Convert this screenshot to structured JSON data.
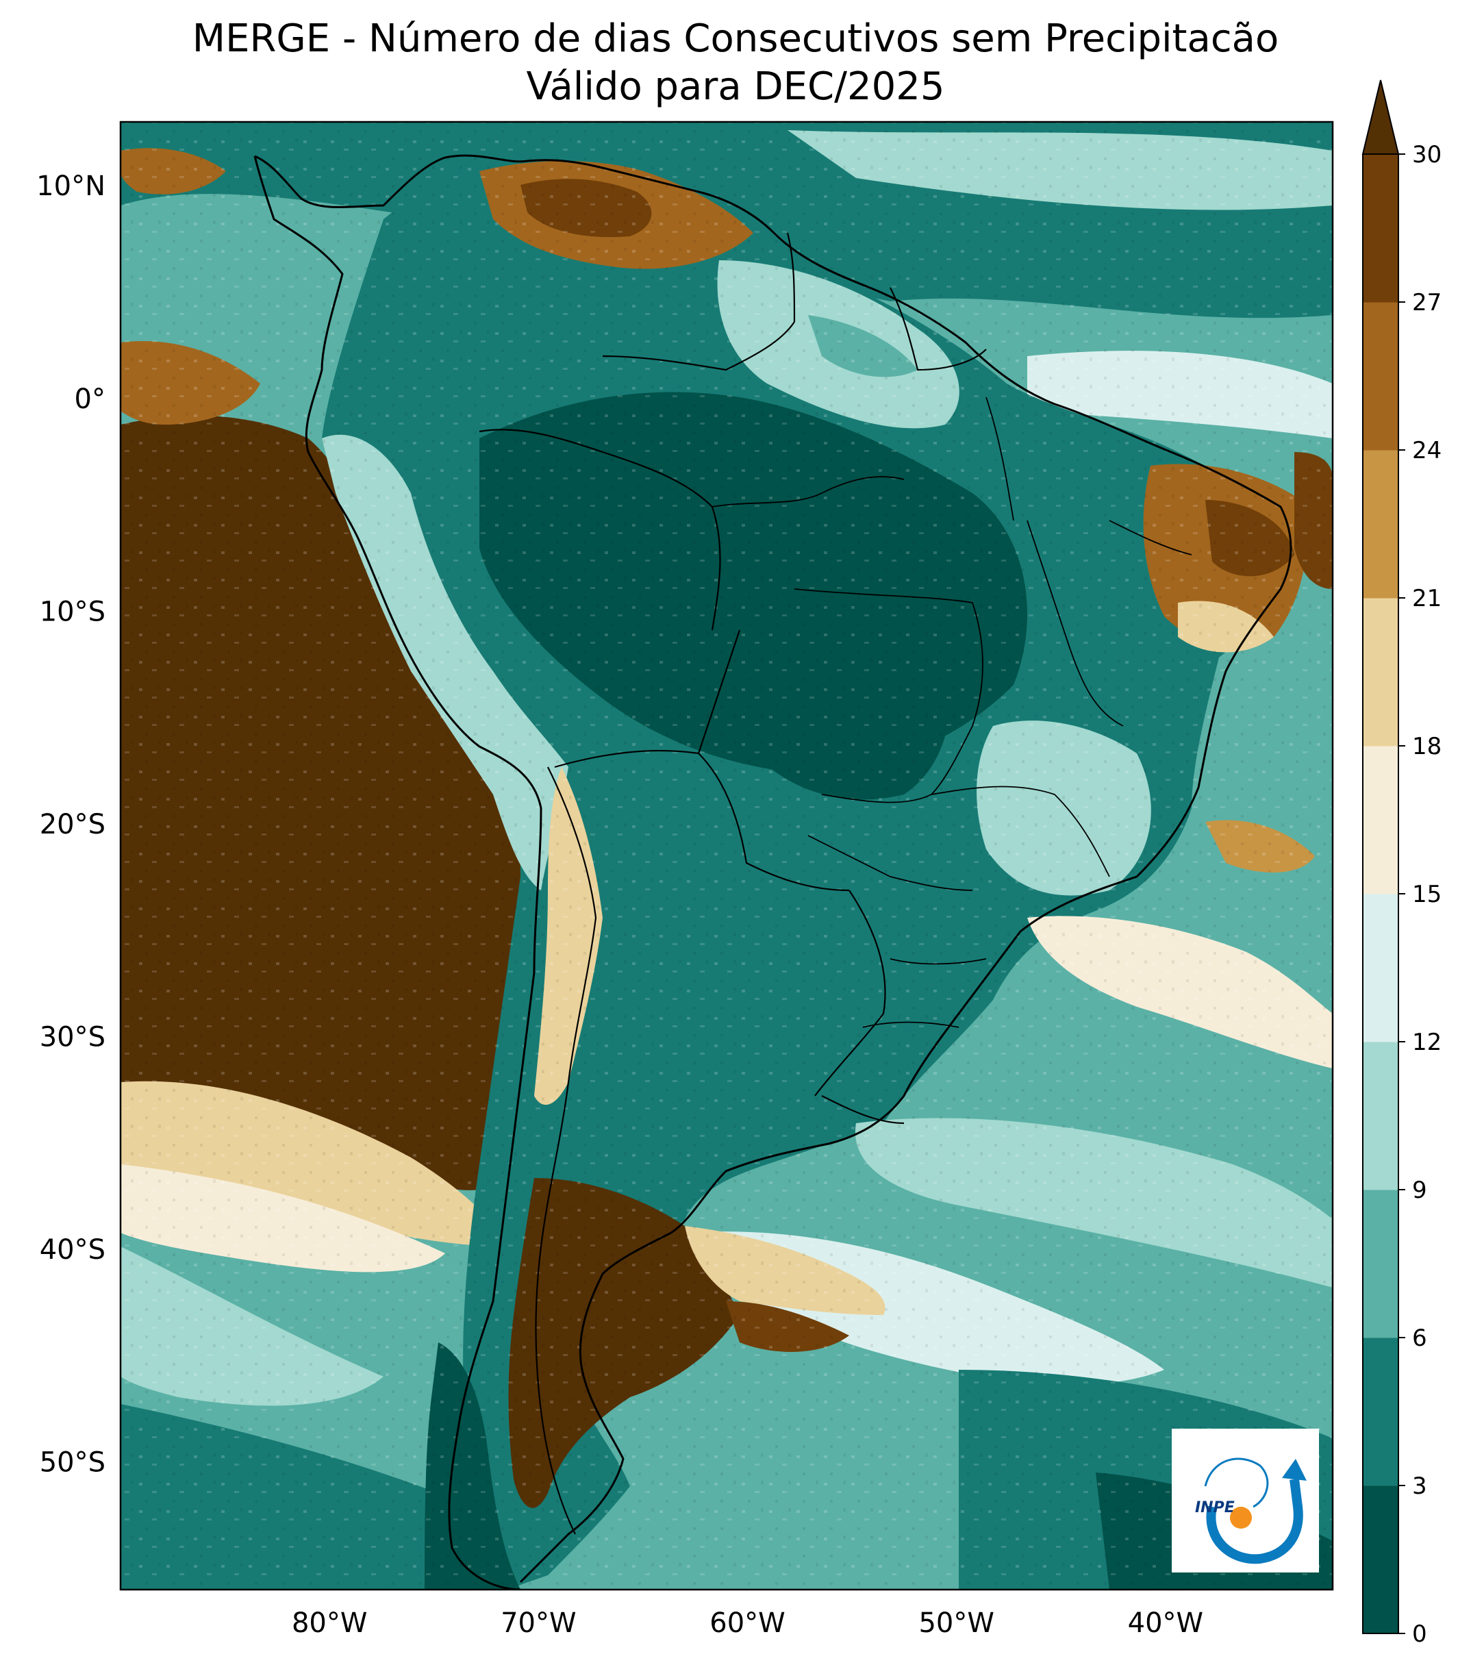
{
  "title": {
    "line1": "MERGE - Número de dias Consecutivos sem Precipitacão",
    "line2": "Válido para DEC/2025"
  },
  "map": {
    "lat_labels": [
      "10°N",
      "0°",
      "10°S",
      "20°S",
      "30°S",
      "40°S",
      "50°S"
    ],
    "lon_labels": [
      "80°W",
      "70°W",
      "60°W",
      "50°W",
      "40°W"
    ],
    "lat_values": [
      10,
      0,
      -10,
      -20,
      -30,
      -40,
      -50
    ],
    "lon_values": [
      -80,
      -70,
      -60,
      -50,
      -40
    ],
    "lon_range": [
      -90,
      -32
    ],
    "lat_range": [
      -56,
      13
    ]
  },
  "colorbar": {
    "levels": [
      0,
      3,
      6,
      9,
      12,
      15,
      18,
      21,
      24,
      27,
      30
    ],
    "labels": [
      "0",
      "3",
      "6",
      "9",
      "12",
      "15",
      "18",
      "21",
      "24",
      "27",
      "30"
    ],
    "colors": [
      "#01524a",
      "#177b74",
      "#5bb1a6",
      "#a3d9d0",
      "#dbf0ee",
      "#f6edd9",
      "#ead29c",
      "#c89545",
      "#a3661e",
      "#713f09"
    ],
    "extend_color": "#543005",
    "extend": "max"
  },
  "logo": {
    "text": "INPE",
    "icon": "inpe-logo-icon"
  }
}
